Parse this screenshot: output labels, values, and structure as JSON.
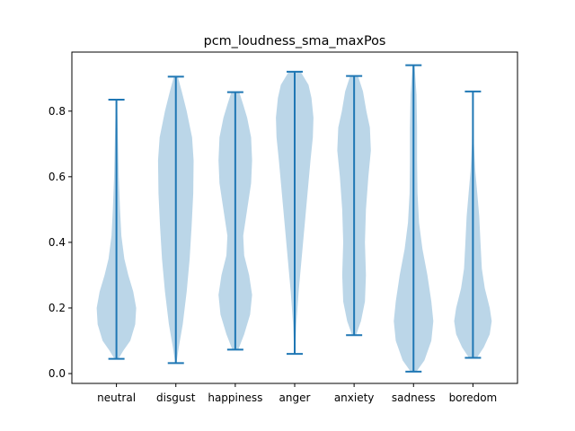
{
  "chart_data": {
    "type": "violin",
    "title": "pcm_loudness_sma_maxPos",
    "xlabel": "",
    "ylabel": "",
    "ylim": [
      -0.03,
      0.98
    ],
    "yticks": [
      "0.0",
      "0.2",
      "0.4",
      "0.6",
      "0.8"
    ],
    "yticks_values": [
      0.0,
      0.2,
      0.4,
      0.6,
      0.8
    ],
    "categories": [
      "neutral",
      "disgust",
      "happiness",
      "anger",
      "anxiety",
      "sadness",
      "boredom"
    ],
    "body_color": "#1f77b4",
    "violins": [
      {
        "min": 0.045,
        "max": 0.835,
        "density": [
          [
            0.045,
            0.1
          ],
          [
            0.07,
            0.35
          ],
          [
            0.1,
            0.7
          ],
          [
            0.15,
            0.95
          ],
          [
            0.2,
            1.0
          ],
          [
            0.25,
            0.85
          ],
          [
            0.3,
            0.6
          ],
          [
            0.35,
            0.4
          ],
          [
            0.42,
            0.25
          ],
          [
            0.5,
            0.18
          ],
          [
            0.6,
            0.12
          ],
          [
            0.7,
            0.08
          ],
          [
            0.78,
            0.05
          ],
          [
            0.835,
            0.02
          ]
        ]
      },
      {
        "min": 0.032,
        "max": 0.905,
        "density": [
          [
            0.032,
            0.03
          ],
          [
            0.08,
            0.15
          ],
          [
            0.15,
            0.35
          ],
          [
            0.25,
            0.55
          ],
          [
            0.35,
            0.7
          ],
          [
            0.45,
            0.8
          ],
          [
            0.55,
            0.88
          ],
          [
            0.65,
            0.9
          ],
          [
            0.72,
            0.82
          ],
          [
            0.8,
            0.55
          ],
          [
            0.86,
            0.3
          ],
          [
            0.905,
            0.1
          ]
        ]
      },
      {
        "min": 0.073,
        "max": 0.858,
        "density": [
          [
            0.073,
            0.15
          ],
          [
            0.12,
            0.45
          ],
          [
            0.18,
            0.75
          ],
          [
            0.24,
            0.85
          ],
          [
            0.3,
            0.7
          ],
          [
            0.36,
            0.45
          ],
          [
            0.42,
            0.4
          ],
          [
            0.5,
            0.6
          ],
          [
            0.58,
            0.8
          ],
          [
            0.65,
            0.85
          ],
          [
            0.72,
            0.8
          ],
          [
            0.78,
            0.6
          ],
          [
            0.82,
            0.4
          ],
          [
            0.858,
            0.2
          ]
        ]
      },
      {
        "min": 0.06,
        "max": 0.92,
        "density": [
          [
            0.06,
            0.02
          ],
          [
            0.15,
            0.08
          ],
          [
            0.25,
            0.2
          ],
          [
            0.35,
            0.35
          ],
          [
            0.45,
            0.5
          ],
          [
            0.55,
            0.65
          ],
          [
            0.65,
            0.8
          ],
          [
            0.72,
            0.92
          ],
          [
            0.78,
            0.95
          ],
          [
            0.84,
            0.85
          ],
          [
            0.88,
            0.7
          ],
          [
            0.92,
            0.3
          ]
        ]
      },
      {
        "min": 0.117,
        "max": 0.907,
        "density": [
          [
            0.117,
            0.1
          ],
          [
            0.16,
            0.35
          ],
          [
            0.22,
            0.55
          ],
          [
            0.3,
            0.6
          ],
          [
            0.4,
            0.55
          ],
          [
            0.5,
            0.6
          ],
          [
            0.6,
            0.72
          ],
          [
            0.68,
            0.85
          ],
          [
            0.75,
            0.8
          ],
          [
            0.8,
            0.62
          ],
          [
            0.86,
            0.45
          ],
          [
            0.907,
            0.2
          ]
        ]
      },
      {
        "min": 0.006,
        "max": 0.94,
        "density": [
          [
            0.006,
            0.15
          ],
          [
            0.04,
            0.55
          ],
          [
            0.1,
            0.9
          ],
          [
            0.16,
            1.0
          ],
          [
            0.22,
            0.9
          ],
          [
            0.3,
            0.7
          ],
          [
            0.38,
            0.45
          ],
          [
            0.46,
            0.28
          ],
          [
            0.55,
            0.2
          ],
          [
            0.65,
            0.18
          ],
          [
            0.75,
            0.18
          ],
          [
            0.85,
            0.15
          ],
          [
            0.94,
            0.05
          ]
        ]
      },
      {
        "min": 0.048,
        "max": 0.86,
        "density": [
          [
            0.048,
            0.2
          ],
          [
            0.08,
            0.55
          ],
          [
            0.12,
            0.85
          ],
          [
            0.16,
            0.95
          ],
          [
            0.2,
            0.85
          ],
          [
            0.26,
            0.6
          ],
          [
            0.32,
            0.45
          ],
          [
            0.4,
            0.38
          ],
          [
            0.48,
            0.32
          ],
          [
            0.55,
            0.22
          ],
          [
            0.62,
            0.12
          ],
          [
            0.7,
            0.05
          ],
          [
            0.8,
            0.02
          ],
          [
            0.86,
            0.01
          ]
        ]
      }
    ]
  }
}
